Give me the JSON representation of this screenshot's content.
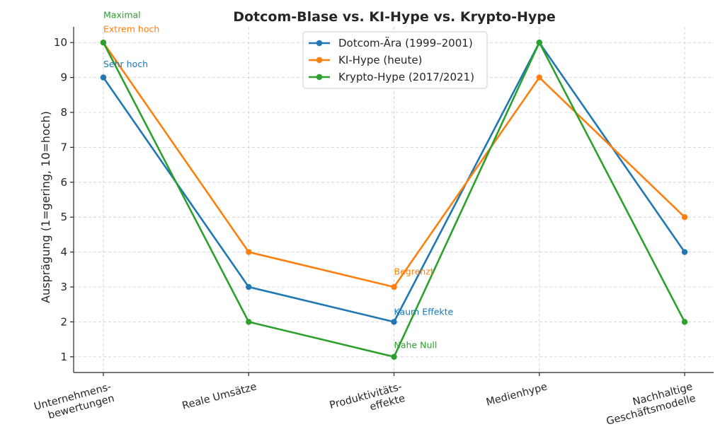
{
  "chart_data": {
    "type": "line",
    "title": "Dotcom-Blase vs. KI-Hype vs. Krypto-Hype",
    "xlabel": "",
    "ylabel": "Ausprägung (1=gering, 10=hoch)",
    "ylim": [
      0.55,
      10.45
    ],
    "yticks": [
      1,
      2,
      3,
      4,
      5,
      6,
      7,
      8,
      9,
      10
    ],
    "grid": true,
    "legend_position": "top-center",
    "categories": [
      [
        "Unternehmens-",
        "bewertungen"
      ],
      [
        "Reale Umsätze"
      ],
      [
        "Produktivitäts-",
        "effekte"
      ],
      [
        "Medienhype"
      ],
      [
        "Nachhaltige",
        "Geschäftsmodelle"
      ]
    ],
    "series": [
      {
        "name": "Dotcom-Ära (1999–2001)",
        "color": "#1f77b4",
        "values": [
          9,
          3,
          2,
          10,
          4
        ]
      },
      {
        "name": "KI-Hype (heute)",
        "color": "#ff7f0e",
        "values": [
          10,
          4,
          3,
          9,
          5
        ]
      },
      {
        "name": "Krypto-Hype (2017/2021)",
        "color": "#2ca02c",
        "values": [
          10,
          2,
          1,
          10,
          2
        ]
      }
    ],
    "annotations": [
      {
        "text": "Sehr hoch",
        "category_index": 0,
        "y": 9.3,
        "color": "#1f77b4"
      },
      {
        "text": "Extrem hoch",
        "category_index": 0,
        "y": 10.3,
        "color": "#ff7f0e"
      },
      {
        "text": "Maximal",
        "category_index": 0,
        "y": 10.7,
        "color": "#2ca02c"
      },
      {
        "text": "Kaum Effekte",
        "category_index": 2,
        "y": 2.2,
        "color": "#1f77b4"
      },
      {
        "text": "Begrenzt",
        "category_index": 2,
        "y": 3.35,
        "color": "#ff7f0e"
      },
      {
        "text": "Nahe Null",
        "category_index": 2,
        "y": 1.25,
        "color": "#2ca02c"
      }
    ]
  }
}
